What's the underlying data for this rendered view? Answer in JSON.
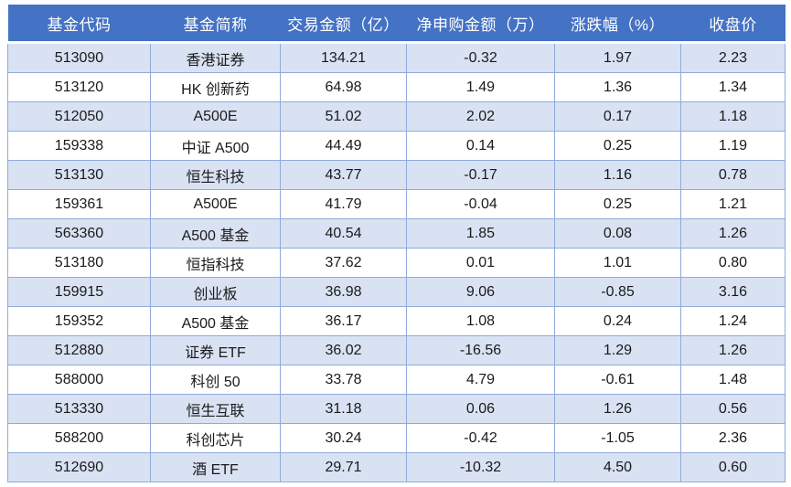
{
  "table": {
    "columns": [
      "基金代码",
      "基金简称",
      "交易金额（亿）",
      "净申购金额（万）",
      "涨跌幅（%）",
      "收盘价"
    ],
    "rows": [
      [
        "513090",
        "香港证券",
        "134.21",
        "-0.32",
        "1.97",
        "2.23"
      ],
      [
        "513120",
        "HK 创新药",
        "64.98",
        "1.49",
        "1.36",
        "1.34"
      ],
      [
        "512050",
        "A500E",
        "51.02",
        "2.02",
        "0.17",
        "1.18"
      ],
      [
        "159338",
        "中证 A500",
        "44.49",
        "0.14",
        "0.25",
        "1.19"
      ],
      [
        "513130",
        "恒生科技",
        "43.77",
        "-0.17",
        "1.16",
        "0.78"
      ],
      [
        "159361",
        "A500E",
        "41.79",
        "-0.04",
        "0.25",
        "1.21"
      ],
      [
        "563360",
        "A500 基金",
        "40.54",
        "1.85",
        "0.08",
        "1.26"
      ],
      [
        "513180",
        "恒指科技",
        "37.62",
        "0.01",
        "1.01",
        "0.80"
      ],
      [
        "159915",
        "创业板",
        "36.98",
        "9.06",
        "-0.85",
        "3.16"
      ],
      [
        "159352",
        "A500 基金",
        "36.17",
        "1.08",
        "0.24",
        "1.24"
      ],
      [
        "512880",
        "证券 ETF",
        "36.02",
        "-16.56",
        "1.29",
        "1.26"
      ],
      [
        "588000",
        "科创 50",
        "33.78",
        "4.79",
        "-0.61",
        "1.48"
      ],
      [
        "513330",
        "恒生互联",
        "31.18",
        "0.06",
        "1.26",
        "0.56"
      ],
      [
        "588200",
        "科创芯片",
        "30.24",
        "-0.42",
        "-1.05",
        "2.36"
      ],
      [
        "512690",
        "酒 ETF",
        "29.71",
        "-10.32",
        "4.50",
        "0.60"
      ]
    ],
    "colors": {
      "header_bg": "#4472C4",
      "header_text": "#FFFFFF",
      "band_bg": "#D9E2F3",
      "border": "#8FAADC",
      "body_text": "#1A1A1A"
    }
  }
}
